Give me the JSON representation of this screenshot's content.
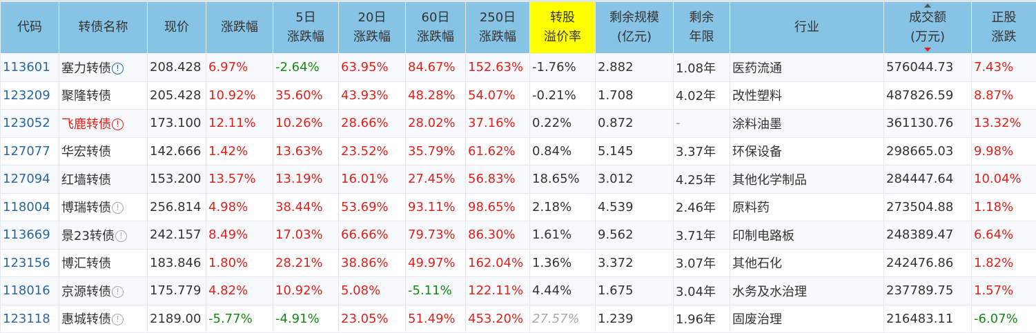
{
  "colors": {
    "header_bg": "#86c3e4",
    "highlight": "#ffff00",
    "up": "#e3201c",
    "down": "#138a13",
    "code": "#2867a3"
  },
  "headers": [
    [
      "代码"
    ],
    [
      "转债名称"
    ],
    [
      "现价"
    ],
    [
      "涨跌幅"
    ],
    [
      "5日",
      "涨跌幅"
    ],
    [
      "20日",
      "涨跌幅"
    ],
    [
      "60日",
      "涨跌幅"
    ],
    [
      "250日",
      "涨跌幅"
    ],
    [
      "转股",
      "溢价率"
    ],
    [
      "剩余规模",
      "(亿元)"
    ],
    [
      "剩余",
      "年限"
    ],
    [
      "行业"
    ],
    [
      "成交额",
      "(万元)"
    ],
    [
      "正股",
      "涨跌"
    ]
  ],
  "rows": [
    {
      "code": "113601",
      "name": "塞力转债",
      "icon": "blue",
      "price": "208.428",
      "chg": "6.97%",
      "d5": "-2.64%",
      "d20": "63.95%",
      "d60": "84.67%",
      "d250": "152.63%",
      "premium": "-1.76%",
      "size": "2.882",
      "years": "1.08年",
      "industry": "医药流通",
      "volume": "576044.73",
      "stock": "7.43%"
    },
    {
      "code": "123209",
      "name": "聚隆转债",
      "icon": "",
      "price": "205.428",
      "chg": "10.92%",
      "d5": "35.60%",
      "d20": "43.93%",
      "d60": "48.28%",
      "d250": "54.07%",
      "premium": "-0.21%",
      "size": "1.708",
      "years": "4.02年",
      "industry": "改性塑料",
      "volume": "487826.59",
      "stock": "8.87%"
    },
    {
      "code": "123052",
      "name": "飞鹿转债",
      "icon": "red",
      "name_red": true,
      "price": "173.100",
      "chg": "12.11%",
      "d5": "10.26%",
      "d20": "28.66%",
      "d60": "28.02%",
      "d250": "37.16%",
      "premium": "0.22%",
      "size": "0.872",
      "years": "-",
      "industry": "涂料油墨",
      "volume": "361130.76",
      "stock": "13.32%"
    },
    {
      "code": "127077",
      "name": "华宏转债",
      "icon": "",
      "price": "142.666",
      "chg": "1.42%",
      "d5": "13.63%",
      "d20": "23.52%",
      "d60": "35.79%",
      "d250": "61.62%",
      "premium": "0.84%",
      "size": "5.145",
      "years": "3.37年",
      "industry": "环保设备",
      "volume": "298665.03",
      "stock": "9.98%"
    },
    {
      "code": "127094",
      "name": "红墙转债",
      "icon": "",
      "price": "153.200",
      "chg": "13.57%",
      "d5": "13.19%",
      "d20": "16.01%",
      "d60": "27.45%",
      "d250": "56.83%",
      "premium": "18.65%",
      "size": "3.012",
      "years": "4.25年",
      "industry": "其他化学制品",
      "volume": "284447.64",
      "stock": "10.04%"
    },
    {
      "code": "118004",
      "name": "博瑞转债",
      "icon": "gray",
      "price": "256.814",
      "chg": "4.98%",
      "d5": "38.44%",
      "d20": "53.69%",
      "d60": "93.11%",
      "d250": "98.65%",
      "premium": "2.18%",
      "size": "4.539",
      "years": "2.46年",
      "industry": "原料药",
      "volume": "273504.88",
      "stock": "1.18%"
    },
    {
      "code": "113669",
      "name": "景23转债",
      "icon": "gray",
      "price": "242.157",
      "chg": "8.49%",
      "d5": "17.03%",
      "d20": "66.66%",
      "d60": "79.73%",
      "d250": "86.30%",
      "premium": "1.61%",
      "size": "9.562",
      "years": "3.71年",
      "industry": "印制电路板",
      "volume": "248389.47",
      "stock": "6.64%"
    },
    {
      "code": "123156",
      "name": "博汇转债",
      "icon": "",
      "price": "183.846",
      "chg": "1.80%",
      "d5": "28.21%",
      "d20": "38.86%",
      "d60": "49.97%",
      "d250": "162.04%",
      "premium": "1.36%",
      "size": "3.372",
      "years": "3.07年",
      "industry": "其他石化",
      "volume": "242476.86",
      "stock": "1.82%"
    },
    {
      "code": "118016",
      "name": "京源转债",
      "icon": "gray",
      "price": "175.779",
      "chg": "4.82%",
      "d5": "10.92%",
      "d20": "5.08%",
      "d60": "-5.11%",
      "d250": "122.11%",
      "premium": "4.44%",
      "size": "1.675",
      "years": "3.04年",
      "industry": "水务及水治理",
      "volume": "237789.75",
      "stock": "1.57%"
    },
    {
      "code": "123118",
      "name": "惠城转债",
      "icon": "gray",
      "price": "2189.00",
      "chg": "-5.77%",
      "d5": "-4.91%",
      "d20": "23.05%",
      "d60": "51.49%",
      "d250": "453.20%",
      "premium": "27.57%",
      "premium_italic": true,
      "size": "1.239",
      "years": "1.96年",
      "industry": "固废治理",
      "volume": "216483.11",
      "stock": "-6.07%"
    }
  ]
}
